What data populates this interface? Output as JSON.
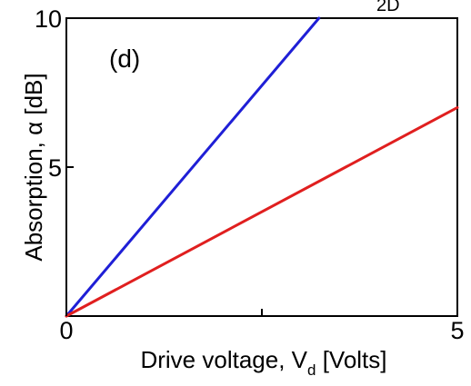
{
  "chart_data": {
    "type": "line",
    "panel_label": "(d)",
    "top_clipped_text": "2D",
    "xlabel": {
      "main": "Drive voltage, V",
      "subscript": "d",
      "unit": " [Volts]"
    },
    "ylabel": "Absorption, α [dB]",
    "xlim": [
      0,
      5
    ],
    "ylim": [
      0,
      10
    ],
    "x_ticks": [
      {
        "value": 0,
        "label": "0"
      },
      {
        "value": 2.5,
        "label": ""
      },
      {
        "value": 5,
        "label": "5"
      }
    ],
    "y_ticks": [
      {
        "value": 5,
        "label": "5"
      },
      {
        "value": 10,
        "label": "10"
      }
    ],
    "grid": false,
    "series": [
      {
        "color": "#1f1fd6",
        "x": [
          0,
          3.23
        ],
        "y": [
          0,
          10
        ]
      },
      {
        "color": "#e01f1f",
        "x": [
          0,
          5
        ],
        "y": [
          0,
          7.0
        ]
      }
    ]
  }
}
